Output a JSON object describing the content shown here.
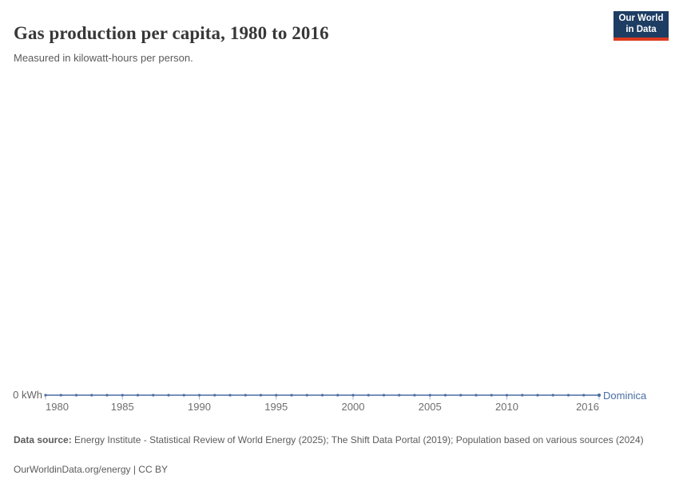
{
  "header": {
    "title": "Gas production per capita, 1980 to 2016",
    "subtitle": "Measured in kilowatt-hours per person.",
    "logo_line1": "Our World",
    "logo_line2": "in Data"
  },
  "chart_data": {
    "type": "line",
    "title": "Gas production per capita, 1980 to 2016",
    "xlabel": "",
    "ylabel": "kilowatt-hours per person",
    "xlim": [
      1980,
      2016
    ],
    "ylim": [
      0,
      0
    ],
    "grid": false,
    "legend_position": "end-of-line",
    "y_axis_label": "0 kWh",
    "x_ticks": [
      1980,
      1985,
      1990,
      1995,
      2000,
      2005,
      2010,
      2016
    ],
    "x": [
      1980,
      1981,
      1982,
      1983,
      1984,
      1985,
      1986,
      1987,
      1988,
      1989,
      1990,
      1991,
      1992,
      1993,
      1994,
      1995,
      1996,
      1997,
      1998,
      1999,
      2000,
      2001,
      2002,
      2003,
      2004,
      2005,
      2006,
      2007,
      2008,
      2009,
      2010,
      2011,
      2012,
      2013,
      2014,
      2015,
      2016
    ],
    "series": [
      {
        "name": "Dominica",
        "color": "#4a6da3",
        "values": [
          0,
          0,
          0,
          0,
          0,
          0,
          0,
          0,
          0,
          0,
          0,
          0,
          0,
          0,
          0,
          0,
          0,
          0,
          0,
          0,
          0,
          0,
          0,
          0,
          0,
          0,
          0,
          0,
          0,
          0,
          0,
          0,
          0,
          0,
          0,
          0,
          0
        ]
      }
    ]
  },
  "footer": {
    "datasource_label": "Data source:",
    "datasource_text": " Energy Institute - Statistical Review of World Energy (2025); The Shift Data Portal (2019); Population based on various sources (2024)",
    "link_line": "OurWorldinData.org/energy | CC BY"
  },
  "colors": {
    "series_blue": "#4a6da3",
    "tick_mark": "#a9b4c8",
    "tick_label": "#6e6e6e",
    "logo_bg": "#1d3d63",
    "logo_bar": "#dc3a1f"
  }
}
